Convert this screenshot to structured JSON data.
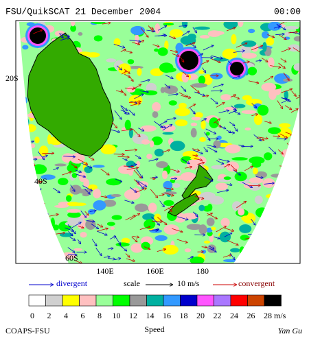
{
  "header": {
    "title": "FSU/QuikSCAT 21 December 2004",
    "time": "00:00"
  },
  "map": {
    "lat_labels": [
      "20S",
      "40S",
      "60S"
    ],
    "lon_labels": [
      "140E",
      "160E",
      "180"
    ]
  },
  "legend": {
    "divergent": "divergent",
    "scale": "scale",
    "scale_value": "10 m/s",
    "convergent": "convergent"
  },
  "colorbar": {
    "colors": [
      "#ffffff",
      "#d0d0d0",
      "#ffff00",
      "#ffc0c0",
      "#99ff99",
      "#00ff00",
      "#999999",
      "#00b0a0",
      "#3399ff",
      "#0000cc",
      "#ff55ff",
      "#aa77ff",
      "#ff0000",
      "#cc4400",
      "#000000"
    ],
    "ticks": [
      0,
      2,
      4,
      6,
      8,
      10,
      12,
      14,
      16,
      18,
      20,
      22,
      24,
      26,
      28
    ],
    "unit": "m/s",
    "label": "Speed"
  },
  "footer": {
    "left": "COAPS-FSU",
    "right": "Yan Gu"
  }
}
